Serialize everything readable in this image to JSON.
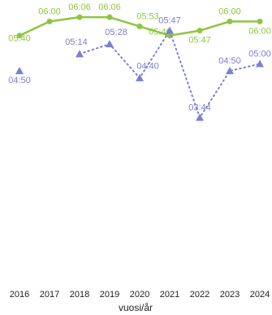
{
  "chart_data": {
    "type": "line",
    "categories": [
      "2016",
      "2017",
      "2018",
      "2019",
      "2020",
      "2021",
      "2022",
      "2023",
      "2024"
    ],
    "x_label": "vuosi/år",
    "ylim": [
      0,
      380
    ],
    "series": [
      {
        "color": "#8dc63f",
        "marker": "circle",
        "dash": "solid",
        "values": [
          340,
          360,
          366,
          366,
          353,
          340,
          347,
          360,
          360
        ],
        "value_labels": [
          "05:40",
          "06:00",
          "06:06",
          "06:06",
          "05:53",
          "05:40",
          "05:47",
          "06:00",
          "06:00"
        ]
      },
      {
        "color": "#7b7fd4",
        "marker": "triangle",
        "dash": "dotted",
        "values": [
          290,
          null,
          314,
          328,
          280,
          347,
          224,
          290,
          300
        ],
        "value_labels": [
          "04:50",
          null,
          "05:14",
          "05:28",
          "04:40",
          "05:47",
          "03:44",
          "04:50",
          "05:00"
        ]
      }
    ]
  }
}
